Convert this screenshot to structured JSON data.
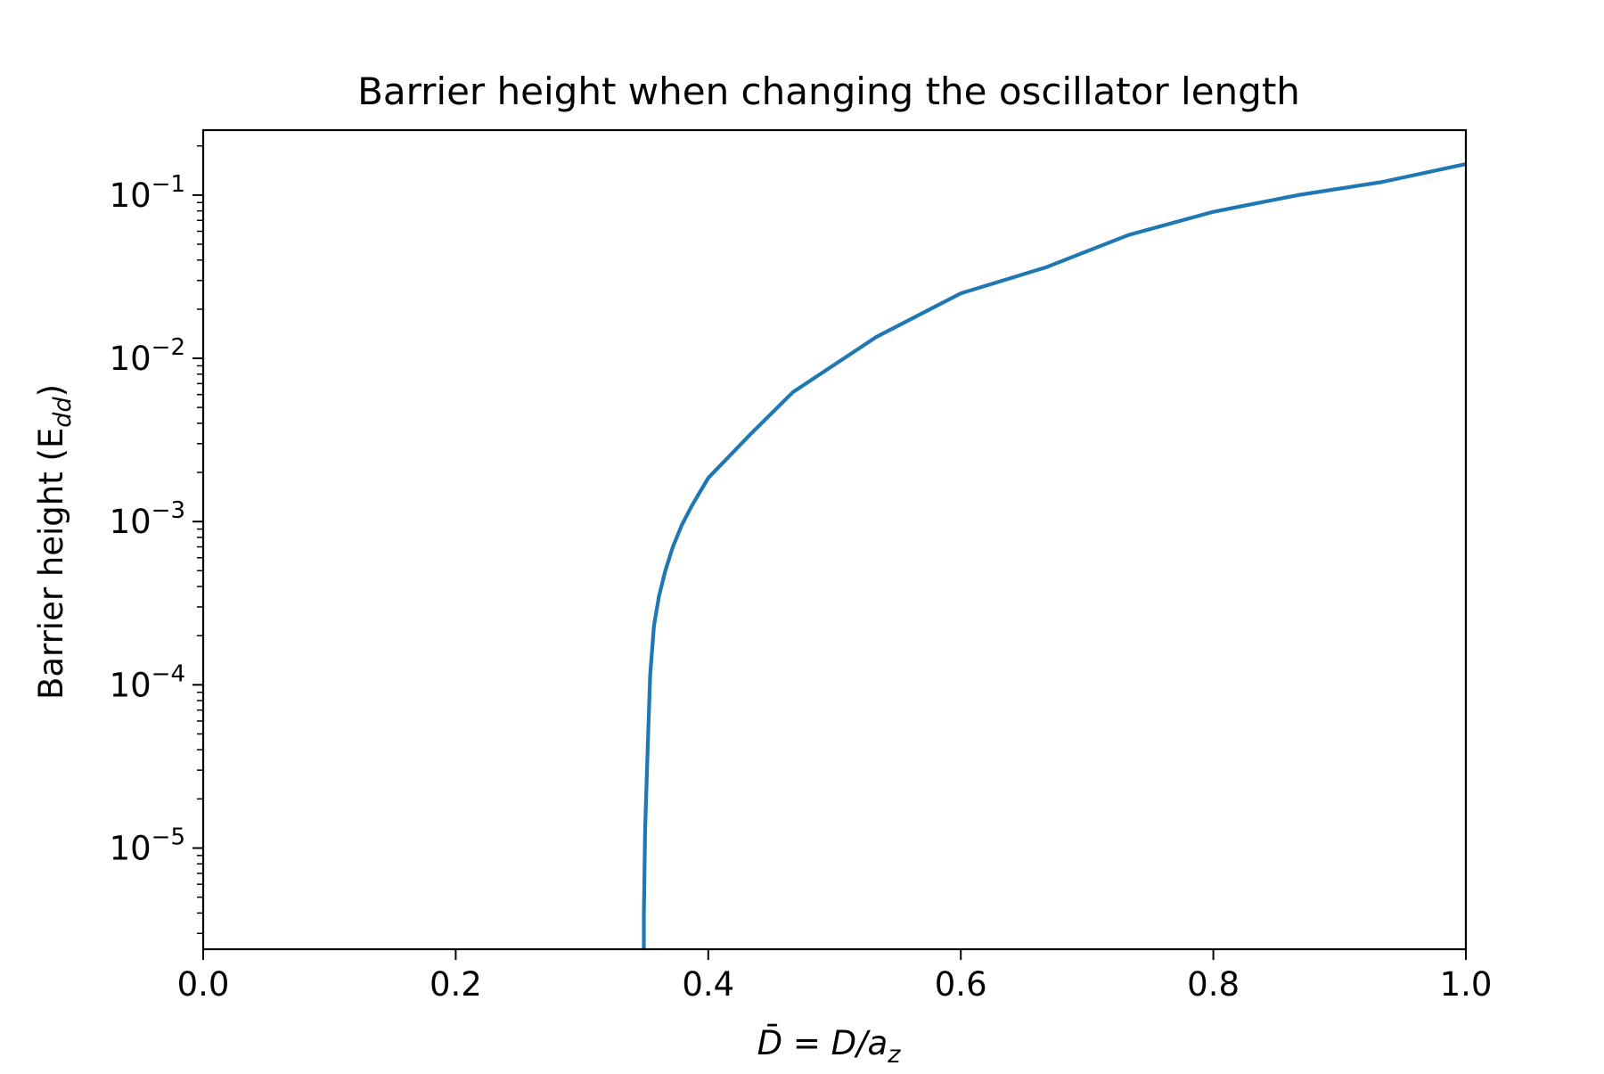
{
  "chart_data": {
    "type": "line",
    "title": "Barrier height when changing the oscillator length",
    "xlabel": "D̄ = D/a",
    "xlabel_sub": "z",
    "ylabel": "Barrier height (E",
    "ylabel_sub": "dd",
    "ylabel_close": ")",
    "xlim": [
      0.0,
      1.0
    ],
    "ylim": [
      2.4e-06,
      0.25
    ],
    "yscale": "log",
    "grid": false,
    "x_ticks": [
      {
        "value": 0.0,
        "label": "0.0"
      },
      {
        "value": 0.2,
        "label": "0.2"
      },
      {
        "value": 0.4,
        "label": "0.4"
      },
      {
        "value": 0.6,
        "label": "0.6"
      },
      {
        "value": 0.8,
        "label": "0.8"
      },
      {
        "value": 1.0,
        "label": "1.0"
      }
    ],
    "y_ticks": [
      {
        "value": 1e-05,
        "base": "10",
        "exp": "−5"
      },
      {
        "value": 0.0001,
        "base": "10",
        "exp": "−4"
      },
      {
        "value": 0.001,
        "base": "10",
        "exp": "−3"
      },
      {
        "value": 0.01,
        "base": "10",
        "exp": "−2"
      },
      {
        "value": 0.1,
        "base": "10",
        "exp": "−1"
      }
    ],
    "series": [
      {
        "color": "#1f77b4",
        "x": [
          0.349,
          0.349,
          0.35,
          0.352,
          0.354,
          0.357,
          0.361,
          0.366,
          0.372,
          0.379,
          0.387,
          0.4,
          0.433,
          0.467,
          0.533,
          0.6,
          0.667,
          0.733,
          0.8,
          0.867,
          0.933,
          1.0
        ],
        "y": [
          2.4e-06,
          3.9e-06,
          1.3e-05,
          4e-05,
          0.000115,
          0.00023,
          0.00035,
          0.0005,
          0.0007,
          0.00095,
          0.00125,
          0.00185,
          0.0034,
          0.0062,
          0.0135,
          0.025,
          0.036,
          0.057,
          0.079,
          0.1,
          0.12,
          0.155
        ]
      }
    ]
  }
}
